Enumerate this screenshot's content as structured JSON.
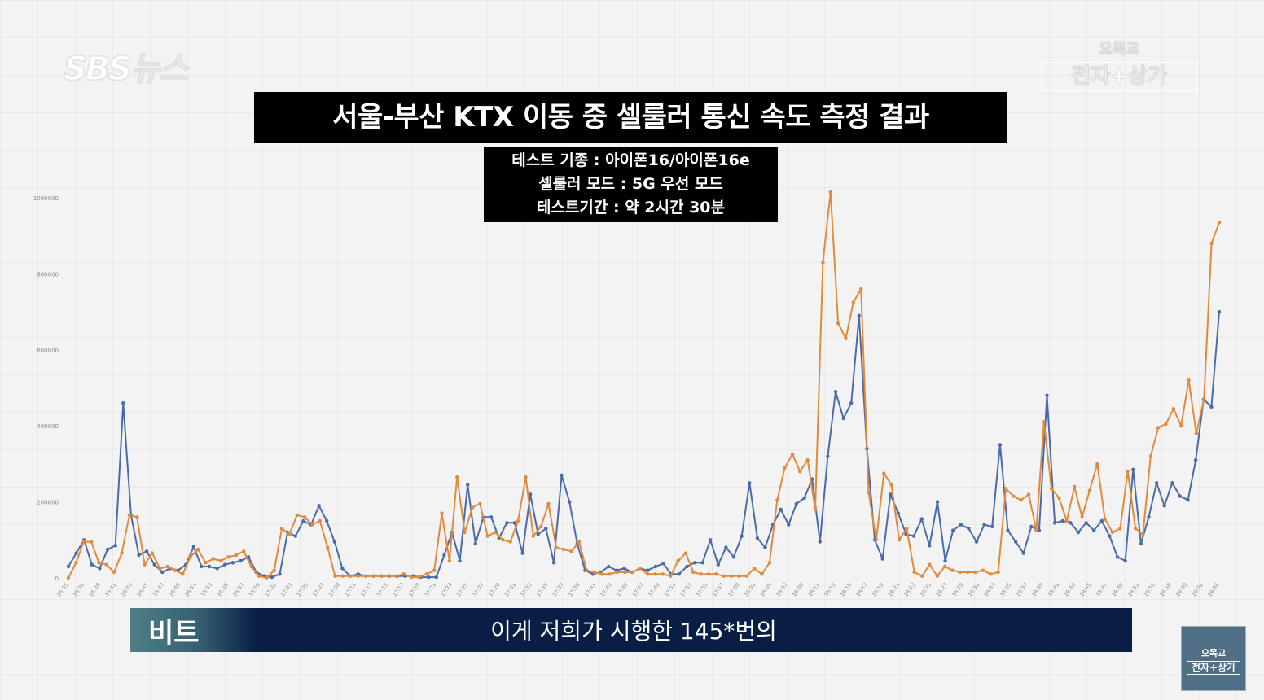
{
  "logo": {
    "text": "SBS뉴스"
  },
  "show_logo": {
    "top": "오목교",
    "main": "전자+상가"
  },
  "title": "서울-부산 KTX 이동 중 셀룰러 통신 속도 측정 결과",
  "info": {
    "line1": "테스트 기종 : 아이폰16/아이폰16e",
    "line2": "셀룰러 모드 : 5G 우선 모드",
    "line3": "테스트기간 : 약 2시간 30분"
  },
  "subtitle": {
    "speaker": "비트",
    "text": "이게 저희가 시행한 145*번의"
  },
  "thumbnail": {
    "top": "오목교",
    "main": "전자+상가"
  },
  "chart_data": {
    "type": "line",
    "title": "",
    "xlabel": "",
    "ylabel": "",
    "ylim": [
      0,
      1000000
    ],
    "yticks": [
      0,
      200000,
      400000,
      600000,
      800000,
      1000000
    ],
    "grid": false,
    "legend": "none",
    "x_tick_labels": [
      "16:35",
      "16:36",
      "16:38",
      "16:41",
      "16:43",
      "16:45",
      "16:47",
      "16:49",
      "16:51",
      "16:53",
      "16:55",
      "16:57",
      "16:59",
      "17:01",
      "17:03",
      "17:05",
      "17:07",
      "17:09",
      "17:11",
      "17:13",
      "17:15",
      "17:17",
      "17:19",
      "17:21",
      "17:23",
      "17:25",
      "17:27",
      "17:29",
      "17:31",
      "17:33",
      "17:35",
      "17:37",
      "17:39",
      "17:41",
      "17:43",
      "17:45",
      "17:47",
      "17:49",
      "17:51",
      "17:53",
      "17:55",
      "17:57",
      "17:59",
      "18:01",
      "18:05",
      "18:07",
      "18:09",
      "18:11",
      "18:13",
      "18:15",
      "18:17",
      "18:19",
      "18:21",
      "18:23",
      "18:25",
      "18:27",
      "18:29",
      "18:31",
      "18:33",
      "18:35",
      "18:37",
      "18:39",
      "18:41",
      "18:43",
      "18:45",
      "18:47",
      "18:49",
      "18:51",
      "18:56",
      "18:58",
      "19:00",
      "19:02",
      "19:04"
    ],
    "series": [
      {
        "color": "#4a6aa8",
        "values": [
          30000,
          65000,
          100000,
          35000,
          25000,
          75000,
          85000,
          460000,
          165000,
          60000,
          70000,
          35000,
          15000,
          25000,
          20000,
          35000,
          82000,
          30000,
          30000,
          25000,
          35000,
          40000,
          45000,
          55000,
          15000,
          5000,
          2000,
          10000,
          120000,
          110000,
          150000,
          140000,
          190000,
          150000,
          95000,
          25000,
          5000,
          10000,
          5000,
          5000,
          5000,
          5000,
          5000,
          5000,
          5000,
          2000,
          2000,
          2000,
          60000,
          120000,
          45000,
          245000,
          90000,
          160000,
          160000,
          105000,
          145000,
          145000,
          65000,
          220000,
          115000,
          130000,
          40000,
          270000,
          200000,
          90000,
          20000,
          10000,
          15000,
          30000,
          20000,
          25000,
          15000,
          25000,
          20000,
          30000,
          38000,
          10000,
          10000,
          30000,
          40000,
          40000,
          100000,
          35000,
          80000,
          55000,
          110000,
          250000,
          105000,
          80000,
          140000,
          180000,
          140000,
          195000,
          210000,
          260000,
          95000,
          320000,
          490000,
          420000,
          460000,
          690000,
          340000,
          100000,
          50000,
          220000,
          170000,
          115000,
          110000,
          155000,
          85000,
          200000,
          45000,
          125000,
          140000,
          130000,
          95000,
          140000,
          135000,
          350000,
          125000,
          95000,
          65000,
          135000,
          125000,
          480000,
          145000,
          150000,
          145000,
          120000,
          145000,
          125000,
          150000,
          110000,
          55000,
          45000,
          285000,
          90000,
          160000,
          250000,
          190000,
          250000,
          215000,
          205000,
          310000,
          470000,
          450000,
          700000
        ]
      },
      {
        "color": "#e08a3c",
        "values": [
          0,
          40000,
          95000,
          95000,
          40000,
          35000,
          15000,
          65000,
          165000,
          160000,
          35000,
          65000,
          25000,
          30000,
          20000,
          10000,
          55000,
          75000,
          40000,
          50000,
          45000,
          55000,
          60000,
          70000,
          30000,
          5000,
          0,
          20000,
          130000,
          115000,
          165000,
          160000,
          140000,
          150000,
          80000,
          5000,
          5000,
          5000,
          5000,
          5000,
          5000,
          5000,
          5000,
          5000,
          10000,
          2000,
          2000,
          10000,
          20000,
          170000,
          45000,
          265000,
          120000,
          185000,
          195000,
          110000,
          120000,
          100000,
          95000,
          150000,
          265000,
          110000,
          135000,
          195000,
          80000,
          75000,
          70000,
          95000,
          20000,
          15000,
          10000,
          10000,
          15000,
          15000,
          15000,
          25000,
          10000,
          10000,
          10000,
          5000,
          45000,
          65000,
          15000,
          10000,
          10000,
          10000,
          5000,
          5000,
          5000,
          5000,
          25000,
          10000,
          40000,
          205000,
          290000,
          325000,
          280000,
          310000,
          180000,
          830000,
          1015000,
          670000,
          630000,
          725000,
          760000,
          225000,
          100000,
          275000,
          245000,
          100000,
          130000,
          15000,
          5000,
          35000,
          5000,
          30000,
          20000,
          15000,
          15000,
          15000,
          20000,
          10000,
          15000,
          235000,
          215000,
          205000,
          220000,
          125000,
          410000,
          235000,
          210000,
          150000,
          240000,
          160000,
          230000,
          300000,
          155000,
          120000,
          130000,
          280000,
          130000,
          115000,
          320000,
          395000,
          405000,
          445000,
          400000,
          520000,
          380000,
          470000,
          880000,
          935000
        ]
      }
    ]
  }
}
